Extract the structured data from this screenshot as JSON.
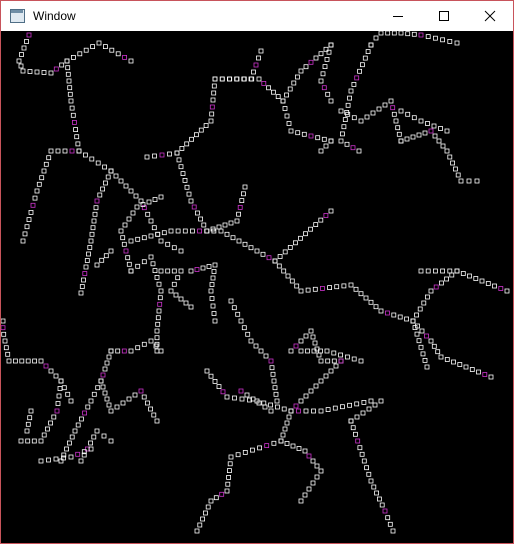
{
  "window": {
    "title": "Window",
    "border_color": "#c8545b",
    "icon": "window-app-icon"
  },
  "caption": {
    "minimize_icon": "minimize-icon",
    "maximize_icon": "maximize-icon",
    "close_icon": "close-icon"
  },
  "canvas": {
    "background": "#000000",
    "marker_stroke": "#ffffff",
    "marker_accent": "#cc33cc"
  }
}
